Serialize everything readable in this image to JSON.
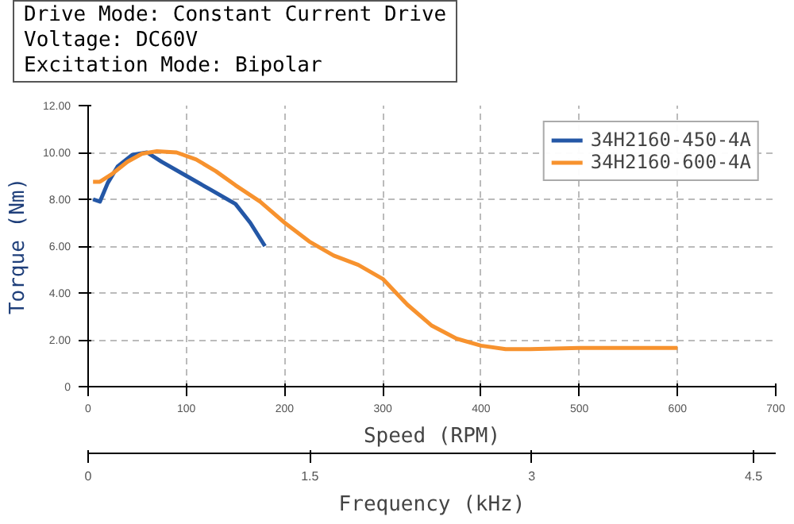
{
  "chart_data": {
    "type": "line",
    "annotations": [
      "Drive Mode: Constant Current Drive",
      "Voltage: DC60V",
      "Excitation Mode: Bipolar"
    ],
    "xlabel": "Speed (RPM)",
    "ylabel": "Torque (Nm)",
    "x2label": "Frequency (kHz)",
    "xlim": [
      0,
      700
    ],
    "xticks": [
      0,
      100,
      200,
      300,
      400,
      500,
      600,
      700
    ],
    "ylim": [
      0,
      12
    ],
    "yticks": [
      0,
      {
        "value": 2,
        "label": "2.00"
      },
      {
        "value": 4,
        "label": "4.00"
      },
      {
        "value": 6,
        "label": "6.00"
      },
      {
        "value": 8,
        "label": "8.00"
      },
      {
        "value": 10,
        "label": "10.00"
      },
      {
        "value": 12,
        "label": "12.00"
      }
    ],
    "x2lim": [
      0,
      4.65
    ],
    "x2ticks": [
      0,
      1.5,
      3,
      4.5
    ],
    "grid": true,
    "legend": "top right",
    "line_style": "solid",
    "series": [
      {
        "name": "34H2160-450-4A",
        "color": "#2457a6",
        "x": [
          5,
          12,
          20,
          30,
          45,
          60,
          75,
          100,
          125,
          150,
          165,
          180
        ],
        "values": [
          8,
          7.9,
          8.7,
          9.4,
          9.9,
          10,
          9.6,
          9,
          8.4,
          7.8,
          7,
          6
        ]
      },
      {
        "name": "34H2160-600-4A",
        "color": "#f7922e",
        "x": [
          5,
          12,
          25,
          40,
          55,
          70,
          90,
          110,
          130,
          150,
          175,
          200,
          225,
          250,
          275,
          300,
          325,
          350,
          375,
          400,
          425,
          450,
          500,
          550,
          600
        ],
        "values": [
          8.75,
          8.75,
          9.1,
          9.6,
          9.95,
          10.05,
          10,
          9.7,
          9.2,
          8.6,
          7.9,
          7,
          6.2,
          5.6,
          5.2,
          4.6,
          3.5,
          2.6,
          2.05,
          1.75,
          1.6,
          1.6,
          1.65,
          1.65,
          1.65
        ]
      }
    ]
  }
}
